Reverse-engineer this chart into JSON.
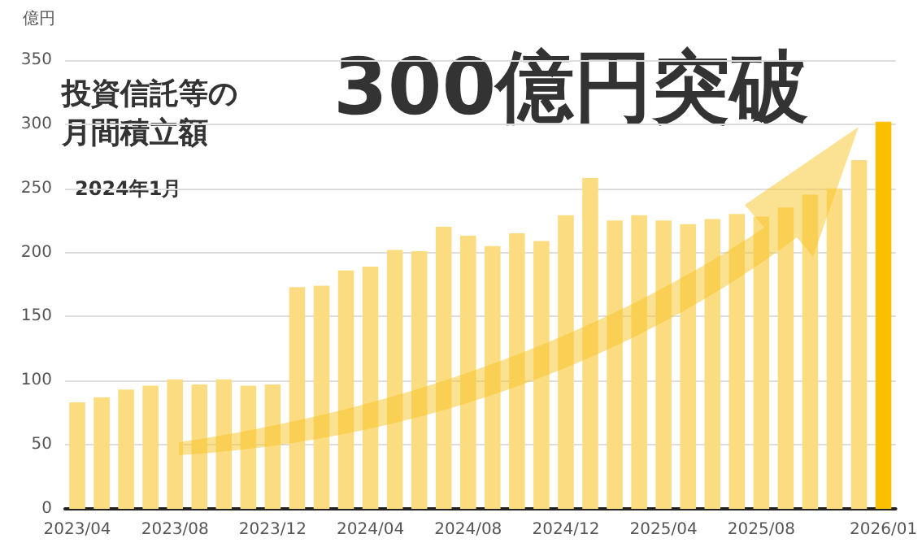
{
  "chart_data": {
    "type": "bar",
    "title": "投資信託等の月間積立額",
    "subtitle": "300億円突破",
    "ylabel": "億円",
    "annotations": [
      "2024年1月"
    ],
    "categories": [
      "2023/04",
      null,
      null,
      null,
      "2023/08",
      null,
      null,
      null,
      "2023/12",
      null,
      null,
      null,
      "2024/04",
      null,
      null,
      null,
      "2024/08",
      null,
      null,
      null,
      "2024/12",
      null,
      null,
      null,
      "2025/04",
      null,
      null,
      null,
      "2025/08",
      null,
      null,
      null,
      null,
      "2026/01"
    ],
    "values": [
      83,
      87,
      93,
      96,
      101,
      97,
      101,
      96,
      97,
      173,
      174,
      186,
      189,
      202,
      201,
      220,
      213,
      205,
      215,
      209,
      229,
      258,
      225,
      229,
      225,
      222,
      226,
      230,
      228,
      235,
      245,
      250,
      272,
      302
    ],
    "colors": [
      "#fcdc80",
      "#fcdc80",
      "#fcdc80",
      "#fcdc80",
      "#fcdc80",
      "#fcdc80",
      "#fcdc80",
      "#fcdc80",
      "#fcdc80",
      "#fcdc80",
      "#fcdc80",
      "#fcdc80",
      "#fcdc80",
      "#fcdc80",
      "#fcdc80",
      "#fcdc80",
      "#fcdc80",
      "#fcdc80",
      "#fcdc80",
      "#fcdc80",
      "#fcdc80",
      "#fcdc80",
      "#fcdc80",
      "#fcdc80",
      "#fcdc80",
      "#fcdc80",
      "#fcdc80",
      "#fcdc80",
      "#fcdc80",
      "#fcdc80",
      "#fcdc80",
      "#fcdc80",
      "#fcdc80",
      "#fbbf00"
    ],
    "ylim": [
      0,
      350
    ],
    "yticks": [
      0,
      50,
      100,
      150,
      200,
      250,
      300,
      350
    ],
    "grid": "y"
  }
}
